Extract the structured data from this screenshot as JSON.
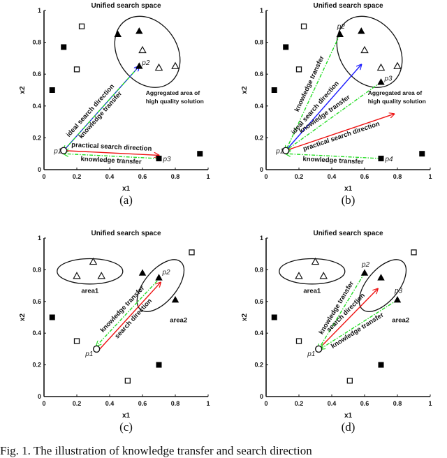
{
  "figure": {
    "caption": "Fig. 1.  The illustration of knowledge transfer and search direction"
  },
  "chart_data": [
    {
      "id": "a",
      "type": "scatter",
      "title": "Unified search space",
      "xlabel": "x1",
      "ylabel": "x2",
      "xlim": [
        0,
        1
      ],
      "ylim": [
        0,
        1
      ],
      "xticks": [
        "0",
        "0.2",
        "0.4",
        "0.6",
        "0.8",
        "1"
      ],
      "yticks": [
        "0",
        "0.2",
        "0.4",
        "0.6",
        "0.8",
        "1"
      ],
      "sublabel": "(a)",
      "points": {
        "filled_square": [
          [
            0.05,
            0.5
          ],
          [
            0.12,
            0.77
          ],
          [
            0.95,
            0.1
          ],
          [
            0.7,
            0.07
          ]
        ],
        "open_square": [
          [
            0.23,
            0.9
          ],
          [
            0.2,
            0.63
          ]
        ],
        "filled_triangle": [
          [
            0.45,
            0.85
          ],
          [
            0.58,
            0.87
          ],
          [
            0.58,
            0.65
          ]
        ],
        "open_triangle": [
          [
            0.6,
            0.75
          ],
          [
            0.7,
            0.64
          ],
          [
            0.8,
            0.65
          ]
        ],
        "open_circle": [
          [
            0.12,
            0.12
          ]
        ]
      },
      "point_labels": [
        {
          "text": "p1",
          "x": 0.12,
          "y": 0.12
        },
        {
          "text": "p2",
          "x": 0.58,
          "y": 0.65
        },
        {
          "text": "p3",
          "x": 0.7,
          "y": 0.07
        }
      ],
      "arrows": [
        {
          "from": [
            0.12,
            0.12
          ],
          "to": [
            0.58,
            0.65
          ],
          "color": "#1a1aff",
          "style": "solid",
          "label": "ideal search direction"
        },
        {
          "from": [
            0.58,
            0.65
          ],
          "to": [
            0.12,
            0.12
          ],
          "color": "#22dd22",
          "style": "dashdot",
          "label": "knowledge transfer"
        },
        {
          "from": [
            0.12,
            0.12
          ],
          "to": [
            0.7,
            0.09
          ],
          "color": "#ee1111",
          "style": "solid",
          "label": "practical search direction"
        },
        {
          "from": [
            0.7,
            0.07
          ],
          "to": [
            0.12,
            0.1
          ],
          "color": "#22dd22",
          "style": "dashdot",
          "label": "knowledge transfer"
        }
      ],
      "ellipse": {
        "cx": 0.63,
        "cy": 0.74,
        "rx": 0.18,
        "ry": 0.24,
        "angle_deg": -35
      },
      "annotation": [
        "Aggregated area of",
        "high quality solution"
      ]
    },
    {
      "id": "b",
      "type": "scatter",
      "title": "Unified search space",
      "xlabel": "x1",
      "ylabel": "x2",
      "xlim": [
        0,
        1
      ],
      "ylim": [
        0,
        1
      ],
      "xticks": [
        "0",
        "0.2",
        "0.4",
        "0.6",
        "0.8",
        "1"
      ],
      "yticks": [
        "0",
        "0.2",
        "0.4",
        "0.6",
        "0.8",
        "1"
      ],
      "sublabel": "(b)",
      "points": {
        "filled_square": [
          [
            0.05,
            0.5
          ],
          [
            0.12,
            0.77
          ],
          [
            0.95,
            0.1
          ],
          [
            0.7,
            0.07
          ]
        ],
        "open_square": [
          [
            0.23,
            0.9
          ],
          [
            0.2,
            0.63
          ]
        ],
        "filled_triangle": [
          [
            0.45,
            0.85
          ],
          [
            0.58,
            0.87
          ],
          [
            0.7,
            0.55
          ]
        ],
        "open_triangle": [
          [
            0.6,
            0.75
          ],
          [
            0.7,
            0.64
          ],
          [
            0.8,
            0.65
          ]
        ],
        "open_circle": [
          [
            0.12,
            0.12
          ]
        ]
      },
      "point_labels": [
        {
          "text": "p1",
          "x": 0.12,
          "y": 0.12
        },
        {
          "text": "p2",
          "x": 0.45,
          "y": 0.85
        },
        {
          "text": "p3",
          "x": 0.7,
          "y": 0.55
        },
        {
          "text": "p4",
          "x": 0.7,
          "y": 0.07
        }
      ],
      "arrows": [
        {
          "from": [
            0.45,
            0.85
          ],
          "to": [
            0.12,
            0.12
          ],
          "color": "#22dd22",
          "style": "dashdot",
          "label": "knowledge transfer"
        },
        {
          "from": [
            0.12,
            0.12
          ],
          "to": [
            0.58,
            0.66
          ],
          "color": "#1a1aff",
          "style": "solid",
          "label": "ideal search direction"
        },
        {
          "from": [
            0.7,
            0.55
          ],
          "to": [
            0.12,
            0.12
          ],
          "color": "#22dd22",
          "style": "dashdot",
          "label": "knowledge transfer"
        },
        {
          "from": [
            0.12,
            0.12
          ],
          "to": [
            0.78,
            0.35
          ],
          "color": "#ee1111",
          "style": "solid",
          "label": "practical search direction"
        },
        {
          "from": [
            0.7,
            0.07
          ],
          "to": [
            0.12,
            0.1
          ],
          "color": "#22dd22",
          "style": "dashdot",
          "label": "knowledge transfer"
        }
      ],
      "ellipse": {
        "cx": 0.63,
        "cy": 0.74,
        "rx": 0.18,
        "ry": 0.24,
        "angle_deg": -35
      },
      "annotation": [
        "Aggregated area of",
        "high quality solution"
      ]
    },
    {
      "id": "c",
      "type": "scatter",
      "title": "Unified search space",
      "xlabel": "x1",
      "ylabel": "x2",
      "xlim": [
        0,
        1
      ],
      "ylim": [
        0,
        1
      ],
      "xticks": [
        "0",
        "0.2",
        "0.4",
        "0.6",
        "0.8",
        "1"
      ],
      "yticks": [
        "0",
        "0.2",
        "0.4",
        "0.6",
        "0.8",
        "1"
      ],
      "sublabel": "(c)",
      "points": {
        "filled_square": [
          [
            0.05,
            0.5
          ],
          [
            0.7,
            0.2
          ]
        ],
        "open_square": [
          [
            0.2,
            0.35
          ],
          [
            0.51,
            0.1
          ],
          [
            0.9,
            0.91
          ]
        ],
        "filled_triangle": [
          [
            0.6,
            0.78
          ],
          [
            0.7,
            0.75
          ],
          [
            0.8,
            0.61
          ]
        ],
        "open_triangle": [
          [
            0.2,
            0.76
          ],
          [
            0.3,
            0.85
          ],
          [
            0.35,
            0.76
          ]
        ],
        "open_circle": [
          [
            0.32,
            0.3
          ]
        ]
      },
      "point_labels": [
        {
          "text": "p1",
          "x": 0.32,
          "y": 0.3
        },
        {
          "text": "p2",
          "x": 0.7,
          "y": 0.75
        }
      ],
      "arrows": [
        {
          "from": [
            0.69,
            0.73
          ],
          "to": [
            0.32,
            0.32
          ],
          "color": "#22dd22",
          "style": "dashdot",
          "label": "knowledge transfer"
        },
        {
          "from": [
            0.34,
            0.3
          ],
          "to": [
            0.71,
            0.72
          ],
          "color": "#ee1111",
          "style": "solid",
          "label": "search direction"
        }
      ],
      "ellipses": [
        {
          "name": "area1",
          "cx": 0.28,
          "cy": 0.79,
          "rx": 0.2,
          "ry": 0.08,
          "angle_deg": 0
        },
        {
          "name": "area2",
          "cx": 0.71,
          "cy": 0.7,
          "rx": 0.19,
          "ry": 0.1,
          "angle_deg": -50
        }
      ],
      "area_labels": [
        "area1",
        "area2"
      ]
    },
    {
      "id": "d",
      "type": "scatter",
      "title": "Unified search space",
      "xlabel": "x1",
      "ylabel": "x2",
      "xlim": [
        0,
        1
      ],
      "ylim": [
        0,
        1
      ],
      "xticks": [
        "0",
        "0.2",
        "0.4",
        "0.6",
        "0.8",
        "1"
      ],
      "yticks": [
        "0",
        "0.2",
        "0.4",
        "0.6",
        "0.8",
        "1"
      ],
      "sublabel": "(d)",
      "points": {
        "filled_square": [
          [
            0.05,
            0.5
          ],
          [
            0.7,
            0.2
          ]
        ],
        "open_square": [
          [
            0.2,
            0.35
          ],
          [
            0.51,
            0.1
          ],
          [
            0.9,
            0.91
          ]
        ],
        "filled_triangle": [
          [
            0.6,
            0.78
          ],
          [
            0.7,
            0.75
          ],
          [
            0.8,
            0.61
          ]
        ],
        "open_triangle": [
          [
            0.2,
            0.76
          ],
          [
            0.3,
            0.85
          ],
          [
            0.35,
            0.76
          ]
        ],
        "open_circle": [
          [
            0.32,
            0.3
          ]
        ]
      },
      "point_labels": [
        {
          "text": "p1",
          "x": 0.32,
          "y": 0.3
        },
        {
          "text": "p2",
          "x": 0.6,
          "y": 0.78
        },
        {
          "text": "p3",
          "x": 0.8,
          "y": 0.61
        }
      ],
      "arrows": [
        {
          "from": [
            0.6,
            0.78
          ],
          "to": [
            0.32,
            0.3
          ],
          "color": "#22dd22",
          "style": "dashdot",
          "label": "knowledge transfer"
        },
        {
          "from": [
            0.33,
            0.31
          ],
          "to": [
            0.68,
            0.68
          ],
          "color": "#ee1111",
          "style": "solid",
          "label": "search direction"
        },
        {
          "from": [
            0.8,
            0.61
          ],
          "to": [
            0.33,
            0.3
          ],
          "color": "#22dd22",
          "style": "dashdot",
          "label": "knowledge transfer"
        }
      ],
      "ellipses": [
        {
          "name": "area1",
          "cx": 0.28,
          "cy": 0.79,
          "rx": 0.2,
          "ry": 0.08,
          "angle_deg": 0
        },
        {
          "name": "area2",
          "cx": 0.71,
          "cy": 0.7,
          "rx": 0.19,
          "ry": 0.1,
          "angle_deg": -50
        }
      ],
      "area_labels": [
        "area1",
        "area2"
      ]
    }
  ]
}
